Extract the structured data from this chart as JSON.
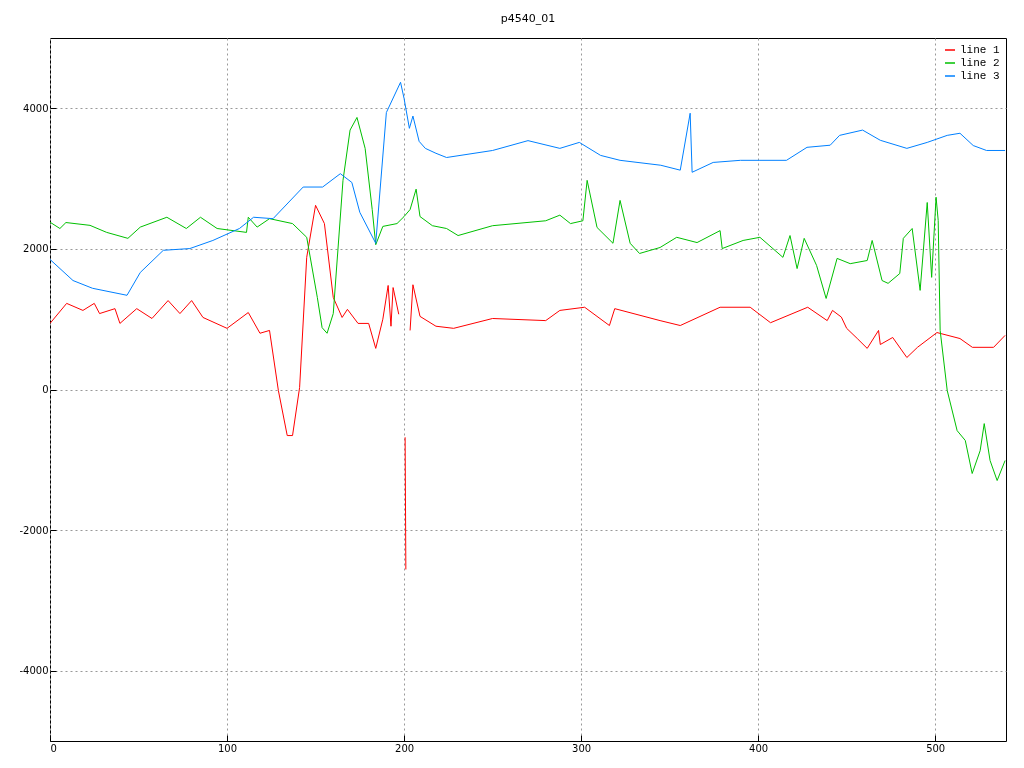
{
  "chart_data": {
    "type": "line",
    "title": "p4540_01",
    "xlim": [
      0,
      540
    ],
    "ylim": [
      -5000,
      5000
    ],
    "xticks": [
      0,
      100,
      200,
      300,
      400,
      500
    ],
    "yticks": [
      -4000,
      -2000,
      0,
      2000,
      4000
    ],
    "grid": true,
    "legend": "top right",
    "series": [
      {
        "name": "line 1",
        "color": "#ff0000",
        "x": [
          0,
          9.4,
          18.6,
          25,
          28,
          36.7,
          39.5,
          49,
          57.6,
          66.7,
          73.4,
          80,
          86.4,
          100,
          112,
          118.6,
          124,
          129,
          134,
          137,
          141,
          145,
          150,
          155,
          160,
          165,
          168,
          174,
          180,
          184,
          188,
          191,
          192.6,
          193.8,
          197,
          200,
          200.6,
          201,
          202,
          203.4,
          205,
          209,
          218,
          228,
          250,
          280,
          288,
          302,
          316,
          319,
          344.6,
          356,
          378.5,
          395.5,
          407,
          428,
          439,
          442,
          447,
          450,
          456,
          461.6,
          468,
          469,
          476,
          484,
          490,
          501,
          514,
          521,
          533,
          539.5
        ],
        "values": [
          940,
          1225,
          1125,
          1225,
          1080,
          1150,
          940,
          1150,
          1010,
          1265,
          1080,
          1265,
          1025,
          870,
          1095,
          800,
          840,
          -15,
          -655,
          -655,
          30,
          1880,
          2620,
          2360,
          1310,
          1025,
          1140,
          940,
          940,
          585,
          1000,
          1480,
          900,
          1450,
          1070,
          null,
          -680,
          -2560,
          null,
          840,
          1490,
          1040,
          900,
          870,
          1010,
          980,
          1125,
          1170,
          910,
          1150,
          980,
          910,
          1170,
          1170,
          950,
          1170,
          980,
          1125,
          1030,
          870,
          725,
          585,
          840,
          640,
          740,
          455,
          600,
          810,
          725,
          600,
          600,
          770
        ]
      },
      {
        "name": "line 2",
        "color": "#00c000",
        "x": [
          0,
          5.6,
          9,
          22.6,
          32,
          44,
          51,
          66,
          77,
          85,
          94.4,
          111,
          112,
          117,
          124,
          137,
          145,
          151,
          153.7,
          156.5,
          160,
          165.5,
          169.5,
          173.4,
          178,
          182,
          184,
          188,
          196,
          200,
          203.4,
          206.8,
          209,
          216,
          224,
          230.5,
          250,
          280,
          288,
          294,
          301,
          303.4,
          309,
          318,
          322,
          327.7,
          333,
          344.6,
          354,
          365.5,
          378.5,
          379.7,
          391.5,
          401,
          414,
          418,
          422,
          426,
          433,
          438.4,
          444.6,
          452,
          461.6,
          464.4,
          470,
          473.4,
          480,
          482,
          487,
          491.5,
          495.5,
          498,
          500.5,
          501.7,
          502.8,
          506.8,
          512.4,
          517,
          520.9,
          525.4,
          527.7,
          531,
          535,
          539.5
        ],
        "values": [
          2380,
          2290,
          2375,
          2335,
          2235,
          2150,
          2310,
          2450,
          2290,
          2450,
          2290,
          2235,
          2450,
          2310,
          2430,
          2360,
          2165,
          1310,
          880,
          800,
          1080,
          2975,
          3690,
          3870,
          3430,
          2560,
          2060,
          2320,
          2360,
          2460,
          2560,
          2850,
          2460,
          2330,
          2290,
          2190,
          2330,
          2400,
          2480,
          2360,
          2400,
          2975,
          2305,
          2080,
          2690,
          2080,
          1935,
          2020,
          2165,
          2090,
          2260,
          2005,
          2120,
          2165,
          1880,
          2190,
          1720,
          2150,
          1765,
          1295,
          1865,
          1790,
          1835,
          2120,
          1550,
          1510,
          1650,
          2150,
          2290,
          1410,
          2660,
          1595,
          2735,
          2405,
          840,
          -15,
          -585,
          -725,
          -1195,
          -870,
          -485,
          -1010,
          -1295,
          -1010
        ]
      },
      {
        "name": "line 3",
        "color": "#0080ff",
        "x": [
          0,
          13,
          24,
          43.5,
          51,
          64,
          79,
          92,
          107,
          115,
          126,
          143,
          154,
          164,
          170.5,
          175,
          184,
          190,
          198,
          200,
          203,
          205,
          208.5,
          212,
          218,
          224,
          250,
          270,
          288,
          299,
          311,
          322,
          345,
          356,
          361.6,
          362.7,
          374.6,
          390,
          401,
          416,
          427.6,
          440.7,
          446,
          459,
          469,
          484,
          495.5,
          506.8,
          514,
          521.5,
          529,
          539.5
        ],
        "values": [
          1850,
          1550,
          1440,
          1340,
          1665,
          1980,
          2005,
          2120,
          2290,
          2450,
          2430,
          2880,
          2880,
          3070,
          2945,
          2520,
          2080,
          3940,
          4370,
          4140,
          3715,
          3890,
          3530,
          3430,
          3360,
          3300,
          3400,
          3540,
          3430,
          3515,
          3330,
          3260,
          3190,
          3120,
          3930,
          3090,
          3230,
          3260,
          3260,
          3260,
          3445,
          3475,
          3615,
          3690,
          3545,
          3430,
          3515,
          3615,
          3645,
          3470,
          3400,
          3400
        ]
      }
    ]
  }
}
